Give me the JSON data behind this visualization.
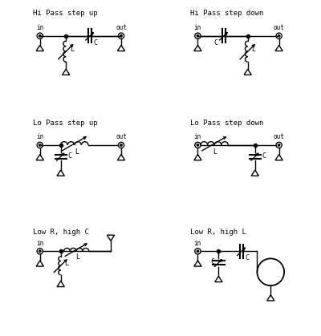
{
  "bg_color": "#ffffff",
  "line_color": "#000000",
  "titles": [
    "Hi Pass step up",
    "Hi Pass step down",
    "Lo Pass step up",
    "Lo Pass step down",
    "Low R, high C",
    "Low R, high L"
  ],
  "lw": 1.0
}
